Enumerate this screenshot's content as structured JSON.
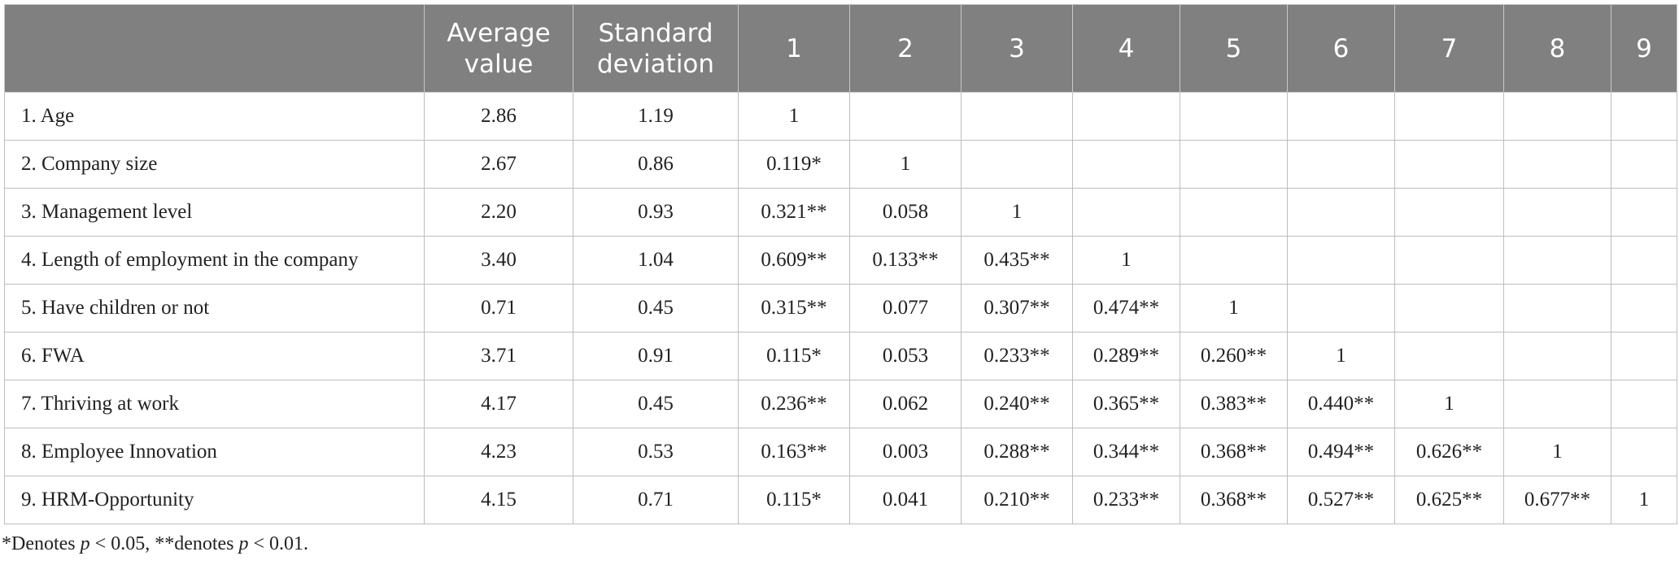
{
  "table": {
    "header": [
      "",
      "Average value",
      "Standard deviation",
      "1",
      "2",
      "3",
      "4",
      "5",
      "6",
      "7",
      "8",
      "9"
    ],
    "rows": [
      {
        "label": "1. Age",
        "mean": "2.86",
        "sd": "1.19",
        "r": [
          "1"
        ]
      },
      {
        "label": "2. Company size",
        "mean": "2.67",
        "sd": "0.86",
        "r": [
          "0.119*",
          "1"
        ]
      },
      {
        "label": "3. Management level",
        "mean": "2.20",
        "sd": "0.93",
        "r": [
          "0.321**",
          "0.058",
          "1"
        ]
      },
      {
        "label": "4. Length of employment in the company",
        "mean": "3.40",
        "sd": "1.04",
        "r": [
          "0.609**",
          "0.133**",
          "0.435**",
          "1"
        ]
      },
      {
        "label": "5. Have children or not",
        "mean": "0.71",
        "sd": "0.45",
        "r": [
          "0.315**",
          "0.077",
          "0.307**",
          "0.474**",
          "1"
        ]
      },
      {
        "label": "6. FWA",
        "mean": "3.71",
        "sd": "0.91",
        "r": [
          "0.115*",
          "0.053",
          "0.233**",
          "0.289**",
          "0.260**",
          "1"
        ]
      },
      {
        "label": "7. Thriving at work",
        "mean": "4.17",
        "sd": "0.45",
        "r": [
          "0.236**",
          "0.062",
          "0.240**",
          "0.365**",
          "0.383**",
          "0.440**",
          "1"
        ]
      },
      {
        "label": "8. Employee Innovation",
        "mean": "4.23",
        "sd": "0.53",
        "r": [
          "0.163**",
          "0.003",
          "0.288**",
          "0.344**",
          "0.368**",
          "0.494**",
          "0.626**",
          "1"
        ]
      },
      {
        "label": "9. HRM-Opportunity",
        "mean": "4.15",
        "sd": "0.71",
        "r": [
          "0.115*",
          "0.041",
          "0.210**",
          "0.233**",
          "0.368**",
          "0.527**",
          "0.625**",
          "0.677**",
          "1"
        ]
      }
    ]
  },
  "footnote": [
    "*Denotes ",
    "p",
    " < 0.05, **denotes ",
    "p",
    " < 0.01."
  ]
}
